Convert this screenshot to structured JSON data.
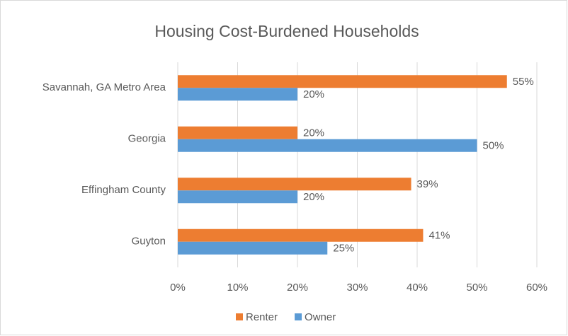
{
  "chart_data": {
    "type": "hbar",
    "title": "Housing Cost-Burdened Households",
    "categories": [
      "Savannah, GA Metro Area",
      "Georgia",
      "Effingham County",
      "Guyton"
    ],
    "series": [
      {
        "name": "Renter",
        "color": "#ed7d31",
        "values": [
          55,
          20,
          39,
          41
        ],
        "value_labels": [
          "55%",
          "20%",
          "39%",
          "41%"
        ]
      },
      {
        "name": "Owner",
        "color": "#5b9bd5",
        "values": [
          20,
          50,
          20,
          25
        ],
        "value_labels": [
          "20%",
          "50%",
          "20%",
          "25%"
        ]
      }
    ],
    "xlim": [
      0,
      60
    ],
    "xticks": [
      {
        "value": 0,
        "label": "0%"
      },
      {
        "value": 10,
        "label": "10%"
      },
      {
        "value": 20,
        "label": "20%"
      },
      {
        "value": 30,
        "label": "30%"
      },
      {
        "value": 40,
        "label": "40%"
      },
      {
        "value": 50,
        "label": "50%"
      },
      {
        "value": 60,
        "label": "60%"
      }
    ],
    "grid": true,
    "legend": "bottom"
  }
}
